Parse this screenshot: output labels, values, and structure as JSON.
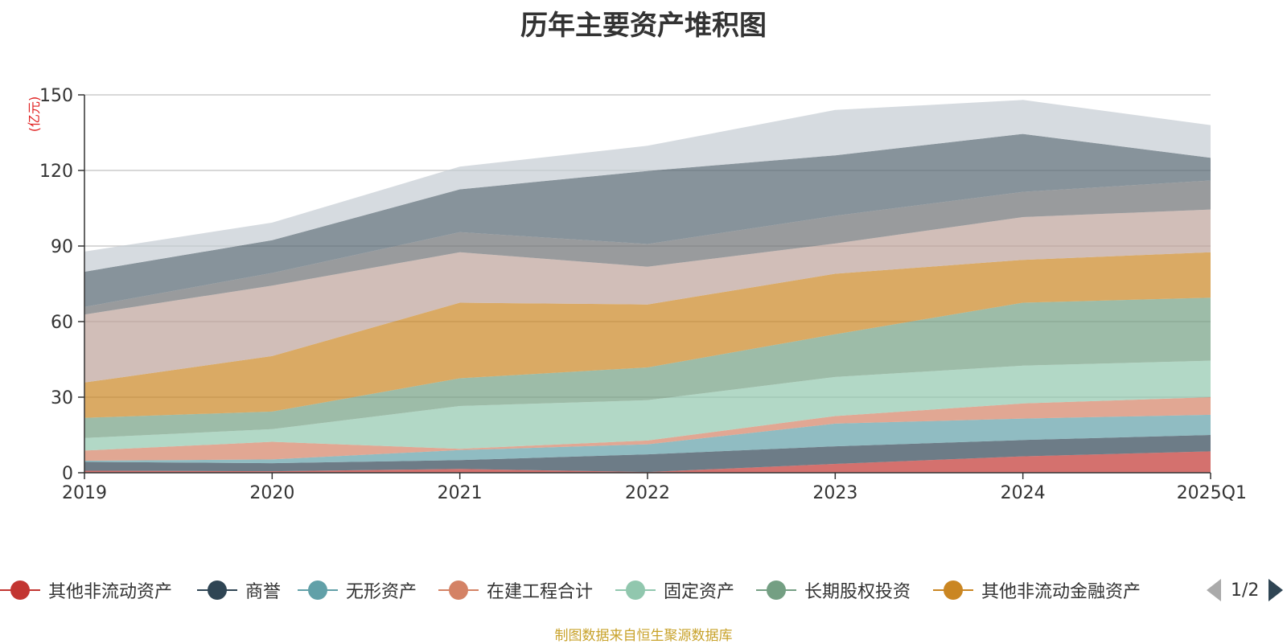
{
  "chart_data": {
    "type": "area",
    "title": "历年主要资产堆积图",
    "unit_label": "(亿元)",
    "categories": [
      "2019",
      "2020",
      "2021",
      "2022",
      "2023",
      "2024",
      "2025Q1"
    ],
    "ylim": [
      0,
      150
    ],
    "yticks": [
      0,
      30,
      60,
      90,
      120,
      150
    ],
    "grid": true,
    "stacked": true,
    "legend_position": "bottom",
    "series": [
      {
        "name": "其他非流动资产",
        "color": "#c23531",
        "values": [
          0.8,
          0.6,
          1.5,
          0.3,
          3.5,
          6.5,
          8.5
        ]
      },
      {
        "name": "商誉",
        "color": "#2f4554",
        "values": [
          3.5,
          3.2,
          3.5,
          7.0,
          7.0,
          6.5,
          6.5
        ]
      },
      {
        "name": "无形资产",
        "color": "#61a0a8",
        "values": [
          0.5,
          1.5,
          4.0,
          4.0,
          9.0,
          8.5,
          8.0
        ]
      },
      {
        "name": "在建工程合计",
        "color": "#d48265",
        "values": [
          4.0,
          7.0,
          0.5,
          1.5,
          3.0,
          6.0,
          7.0
        ]
      },
      {
        "name": "固定资产",
        "color": "#91c7ae",
        "values": [
          5.0,
          5.0,
          17.0,
          16.0,
          15.5,
          15.0,
          14.5
        ]
      },
      {
        "name": "长期股权投资",
        "color": "#749f83",
        "values": [
          8.0,
          7.0,
          11.0,
          13.0,
          17.0,
          25.0,
          25.0
        ]
      },
      {
        "name": "其他非流动金融资产",
        "color": "#ca8622",
        "values": [
          14.0,
          22.0,
          30.0,
          25.0,
          24.0,
          17.0,
          18.0
        ]
      },
      {
        "name": "",
        "color": "#bda29a",
        "values": [
          27.0,
          28.0,
          20.0,
          15.0,
          12.0,
          17.0,
          17.0
        ]
      },
      {
        "name": "",
        "color": "#6e7074",
        "values": [
          3.0,
          5.0,
          8.0,
          9.0,
          11.0,
          10.0,
          11.5
        ]
      },
      {
        "name": "",
        "color": "#546570",
        "values": [
          14.0,
          13.0,
          17.0,
          29.0,
          24.0,
          23.0,
          9.0
        ]
      },
      {
        "name": "",
        "color": "#c4ccd3",
        "values": [
          8.0,
          7.0,
          9.0,
          10.0,
          18.0,
          13.5,
          13.0
        ]
      }
    ]
  },
  "legend": {
    "pager_text": "1/2"
  },
  "source_note": "制图数据来自恒生聚源数据库"
}
